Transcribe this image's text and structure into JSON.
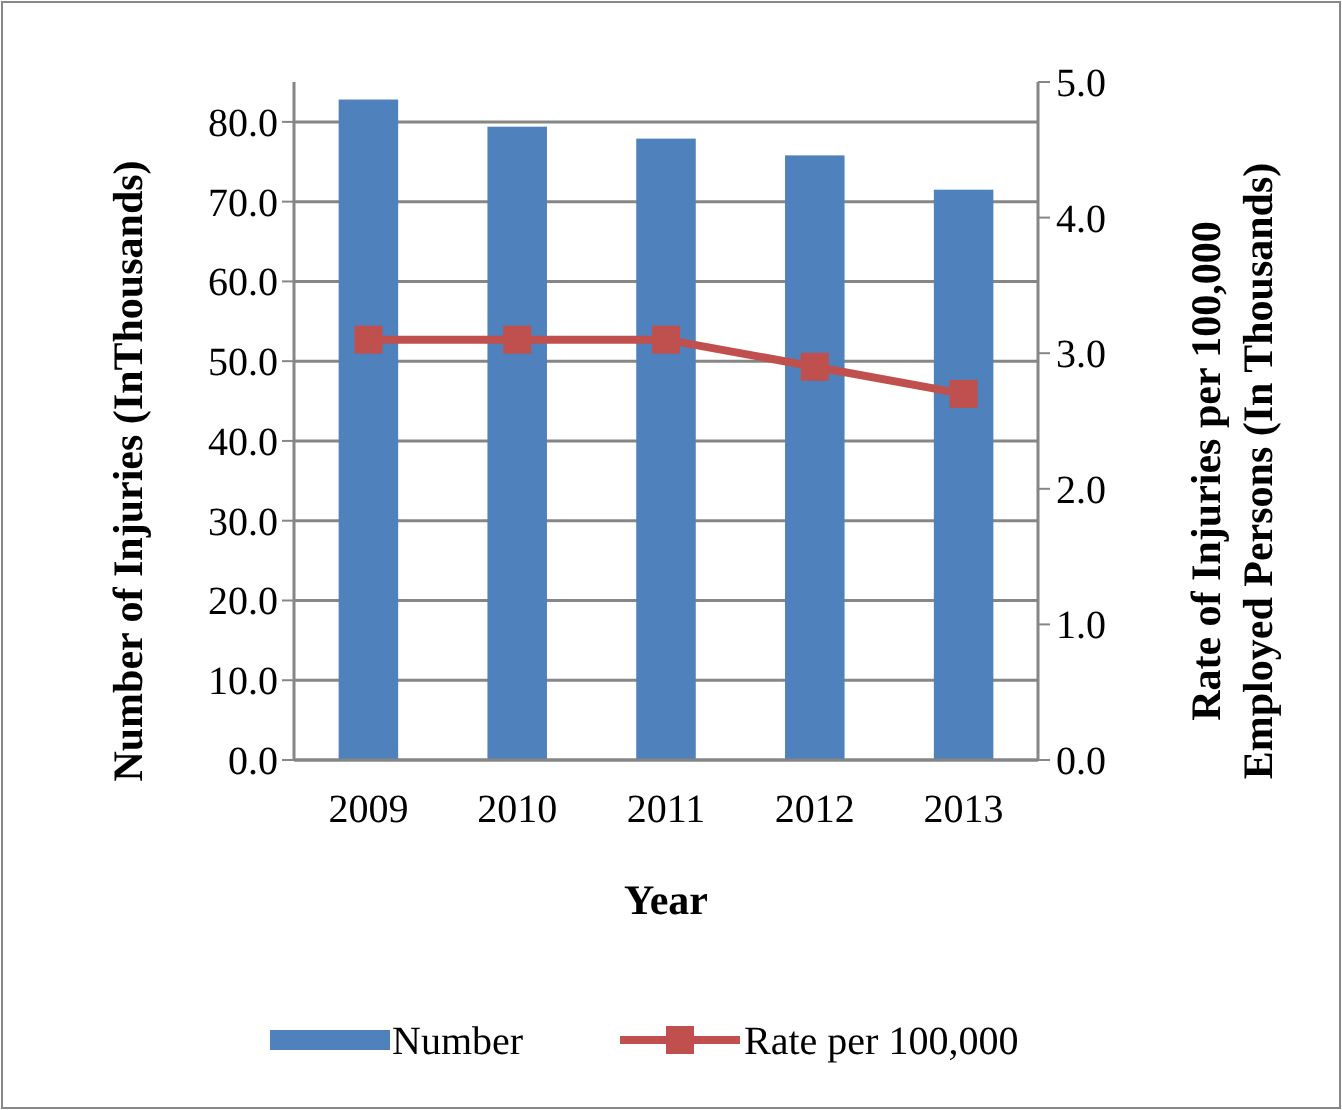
{
  "chart_data": {
    "type": "bar",
    "xlabel": "Year",
    "ylabel": "Number of Injuries (InThousands)",
    "y2label": "Rate of Injuries per 100,000 Employed Persons (In Thousands)",
    "categories": [
      "2009",
      "2010",
      "2011",
      "2012",
      "2013"
    ],
    "series": [
      {
        "name": "Number",
        "color": "#4f81bd",
        "values": [
          82.8,
          79.4,
          77.9,
          75.8,
          71.5
        ]
      },
      {
        "name": "Rate per 100,000",
        "type": "line",
        "axis": "y2",
        "color": "#c0504d",
        "marker": "square",
        "values": [
          3.1,
          3.1,
          3.1,
          2.9,
          2.7
        ]
      }
    ],
    "ylim": [
      0,
      85
    ],
    "yticks": [
      {
        "value": 0,
        "label": "0.0"
      },
      {
        "value": 10,
        "label": "10.0"
      },
      {
        "value": 20,
        "label": "20.0"
      },
      {
        "value": 30,
        "label": "30.0"
      },
      {
        "value": 40,
        "label": "40.0"
      },
      {
        "value": 50,
        "label": "50.0"
      },
      {
        "value": 60,
        "label": "60.0"
      },
      {
        "value": 70,
        "label": "70.0"
      },
      {
        "value": 80,
        "label": "80.0"
      }
    ],
    "y2lim": [
      0,
      5
    ],
    "y2ticks": [
      {
        "value": 0,
        "label": "0.0"
      },
      {
        "value": 1,
        "label": "1.0"
      },
      {
        "value": 2,
        "label": "2.0"
      },
      {
        "value": 3,
        "label": "3.0"
      },
      {
        "value": 4,
        "label": "4.0"
      },
      {
        "value": 5,
        "label": "5.0"
      }
    ],
    "grid": "y",
    "legend": "bottom"
  }
}
